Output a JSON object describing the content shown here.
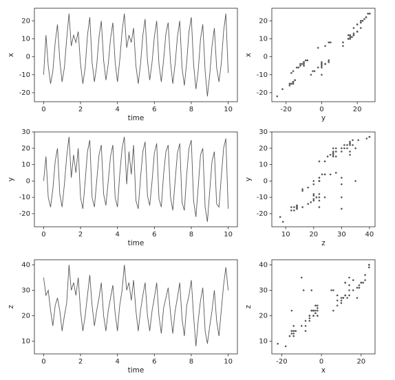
{
  "chart_data": [
    {
      "type": "line",
      "xlabel": "time",
      "ylabel": "x",
      "color": "#555555",
      "x": [
        0,
        0.125,
        0.25,
        0.375,
        0.5,
        0.625,
        0.75,
        0.875,
        1,
        1.125,
        1.25,
        1.375,
        1.5,
        1.625,
        1.75,
        1.875,
        2,
        2.125,
        2.25,
        2.375,
        2.5,
        2.625,
        2.75,
        2.875,
        3,
        3.125,
        3.25,
        3.375,
        3.5,
        3.625,
        3.75,
        3.875,
        4,
        4.125,
        4.25,
        4.375,
        4.5,
        4.625,
        4.75,
        4.875,
        5,
        5.125,
        5.25,
        5.375,
        5.5,
        5.625,
        5.75,
        5.875,
        6,
        6.125,
        6.25,
        6.375,
        6.5,
        6.625,
        6.75,
        6.875,
        7,
        7.125,
        7.25,
        7.375,
        7.5,
        7.625,
        7.75,
        7.875,
        8,
        8.125,
        8.25,
        8.375,
        8.5,
        8.625,
        8.75,
        8.875,
        9,
        9.125,
        9.25,
        9.375,
        9.5,
        9.625,
        9.75,
        9.875,
        10
      ],
      "values": [
        -10,
        12,
        -5,
        -15,
        -8,
        8,
        18,
        -2,
        -14,
        -6,
        10,
        24,
        6,
        12,
        8,
        14,
        -4,
        -15,
        -6,
        12,
        22,
        -3,
        -14,
        -5,
        11,
        20,
        -2,
        -13,
        -4,
        10,
        19,
        -3,
        -14,
        -2,
        14,
        24,
        5,
        12,
        8,
        16,
        -5,
        -15,
        -4,
        12,
        21,
        -2,
        -13,
        -3,
        11,
        20,
        -4,
        -14,
        -2,
        13,
        19,
        -3,
        -15,
        -4,
        11,
        20,
        -6,
        -16,
        -3,
        14,
        22,
        -4,
        -18,
        -8,
        10,
        18,
        -8,
        -22,
        -10,
        6,
        16,
        -6,
        -14,
        -4,
        14,
        24,
        -9
      ],
      "xlim": [
        -0.5,
        10.5
      ],
      "xticks": [
        0,
        2,
        4,
        6,
        8,
        10
      ],
      "ylim": [
        -25,
        27
      ],
      "yticks": [
        -20,
        -10,
        0,
        10,
        20
      ]
    },
    {
      "type": "scatter",
      "xlabel": "y",
      "ylabel": "x",
      "color": "#555555",
      "x": [
        0,
        15,
        -10,
        -16,
        -5,
        12,
        20,
        -8,
        -16,
        -2,
        15,
        27,
        2,
        16,
        5,
        20,
        -10,
        -17,
        0,
        18,
        25,
        -10,
        -16,
        0,
        16,
        22,
        -8,
        -15,
        0,
        15,
        22,
        -10,
        -16,
        4,
        20,
        27,
        -2,
        18,
        4,
        22,
        -12,
        -17,
        2,
        18,
        24,
        -9,
        -15,
        0,
        17,
        23,
        -11,
        -16,
        4,
        18,
        22,
        -10,
        -18,
        0,
        17,
        23,
        -13,
        -18,
        4,
        20,
        25,
        -12,
        -22,
        -4,
        16,
        20,
        -16,
        -25,
        -6,
        12,
        18,
        -14,
        -16,
        2,
        20,
        26,
        -17
      ],
      "y": [
        -10,
        12,
        -5,
        -15,
        -8,
        8,
        18,
        -2,
        -14,
        -6,
        10,
        24,
        6,
        12,
        8,
        14,
        -4,
        -15,
        -6,
        12,
        22,
        -3,
        -14,
        -5,
        11,
        20,
        -2,
        -13,
        -4,
        10,
        19,
        -3,
        -14,
        -2,
        14,
        24,
        5,
        12,
        8,
        16,
        -5,
        -15,
        -4,
        12,
        21,
        -2,
        -13,
        -3,
        11,
        20,
        -4,
        -14,
        -2,
        13,
        19,
        -3,
        -15,
        -4,
        11,
        20,
        -6,
        -16,
        -3,
        14,
        22,
        -4,
        -18,
        -8,
        10,
        18,
        -8,
        -22,
        -10,
        6,
        16,
        -6,
        -14,
        -4,
        14,
        24,
        -9
      ],
      "xlim": [
        -28,
        30
      ],
      "xticks": [
        -20,
        0,
        20
      ],
      "ylim": [
        -25,
        27
      ],
      "yticks": [
        -20,
        -10,
        0,
        10,
        20
      ]
    },
    {
      "type": "line",
      "xlabel": "time",
      "ylabel": "y",
      "color": "#555555",
      "x": [
        0,
        0.125,
        0.25,
        0.375,
        0.5,
        0.625,
        0.75,
        0.875,
        1,
        1.125,
        1.25,
        1.375,
        1.5,
        1.625,
        1.75,
        1.875,
        2,
        2.125,
        2.25,
        2.375,
        2.5,
        2.625,
        2.75,
        2.875,
        3,
        3.125,
        3.25,
        3.375,
        3.5,
        3.625,
        3.75,
        3.875,
        4,
        4.125,
        4.25,
        4.375,
        4.5,
        4.625,
        4.75,
        4.875,
        5,
        5.125,
        5.25,
        5.375,
        5.5,
        5.625,
        5.75,
        5.875,
        6,
        6.125,
        6.25,
        6.375,
        6.5,
        6.625,
        6.75,
        6.875,
        7,
        7.125,
        7.25,
        7.375,
        7.5,
        7.625,
        7.75,
        7.875,
        8,
        8.125,
        8.25,
        8.375,
        8.5,
        8.625,
        8.75,
        8.875,
        9,
        9.125,
        9.25,
        9.375,
        9.5,
        9.625,
        9.75,
        9.875,
        10
      ],
      "values": [
        0,
        15,
        -10,
        -16,
        -5,
        12,
        20,
        -8,
        -16,
        -2,
        15,
        27,
        2,
        16,
        5,
        20,
        -10,
        -17,
        0,
        18,
        25,
        -10,
        -16,
        0,
        16,
        22,
        -8,
        -15,
        0,
        15,
        22,
        -10,
        -16,
        4,
        20,
        27,
        -2,
        18,
        4,
        22,
        -12,
        -17,
        2,
        18,
        24,
        -9,
        -15,
        0,
        17,
        23,
        -11,
        -16,
        4,
        18,
        22,
        -10,
        -18,
        0,
        17,
        23,
        -13,
        -18,
        4,
        20,
        25,
        -12,
        -22,
        -4,
        16,
        20,
        -16,
        -25,
        -6,
        12,
        18,
        -14,
        -16,
        2,
        20,
        26,
        -17
      ],
      "xlim": [
        -0.5,
        10.5
      ],
      "xticks": [
        0,
        2,
        4,
        6,
        8,
        10
      ],
      "ylim": [
        -28,
        30
      ],
      "yticks": [
        -20,
        -10,
        0,
        10,
        20,
        30
      ]
    },
    {
      "type": "scatter",
      "xlabel": "z",
      "ylabel": "y",
      "color": "#555555",
      "x": [
        35,
        28,
        30,
        22,
        16,
        24,
        27,
        22,
        14,
        20,
        25,
        40,
        30,
        33,
        28,
        35,
        22,
        14,
        20,
        28,
        36,
        24,
        16,
        22,
        27,
        33,
        20,
        14,
        22,
        27,
        32,
        21,
        14,
        24,
        30,
        40,
        30,
        33,
        26,
        34,
        22,
        14,
        22,
        28,
        33,
        20,
        14,
        22,
        27,
        33,
        20,
        13,
        23,
        27,
        31,
        21,
        13,
        22,
        27,
        33,
        19,
        12,
        24,
        28,
        34,
        20,
        8,
        18,
        26,
        31,
        14,
        9,
        16,
        22,
        30,
        18,
        12,
        22,
        32,
        39,
        30
      ],
      "y": [
        0,
        15,
        -10,
        -16,
        -5,
        12,
        20,
        -8,
        -16,
        -2,
        15,
        27,
        2,
        16,
        5,
        20,
        -10,
        -17,
        0,
        18,
        25,
        -10,
        -16,
        0,
        16,
        22,
        -8,
        -15,
        0,
        15,
        22,
        -10,
        -16,
        4,
        20,
        27,
        -2,
        18,
        4,
        22,
        -12,
        -17,
        2,
        18,
        24,
        -9,
        -15,
        0,
        17,
        23,
        -11,
        -16,
        4,
        18,
        22,
        -10,
        -18,
        0,
        17,
        23,
        -13,
        -18,
        4,
        20,
        25,
        -12,
        -22,
        -4,
        16,
        20,
        -16,
        -25,
        -6,
        12,
        18,
        -14,
        -16,
        2,
        20,
        26,
        -17
      ],
      "xlim": [
        5,
        42
      ],
      "xticks": [
        10,
        20,
        30,
        40
      ],
      "ylim": [
        -28,
        30
      ],
      "yticks": [
        -20,
        -10,
        0,
        10,
        20,
        30
      ]
    },
    {
      "type": "line",
      "xlabel": "time",
      "ylabel": "z",
      "color": "#555555",
      "x": [
        0,
        0.125,
        0.25,
        0.375,
        0.5,
        0.625,
        0.75,
        0.875,
        1,
        1.125,
        1.25,
        1.375,
        1.5,
        1.625,
        1.75,
        1.875,
        2,
        2.125,
        2.25,
        2.375,
        2.5,
        2.625,
        2.75,
        2.875,
        3,
        3.125,
        3.25,
        3.375,
        3.5,
        3.625,
        3.75,
        3.875,
        4,
        4.125,
        4.25,
        4.375,
        4.5,
        4.625,
        4.75,
        4.875,
        5,
        5.125,
        5.25,
        5.375,
        5.5,
        5.625,
        5.75,
        5.875,
        6,
        6.125,
        6.25,
        6.375,
        6.5,
        6.625,
        6.75,
        6.875,
        7,
        7.125,
        7.25,
        7.375,
        7.5,
        7.625,
        7.75,
        7.875,
        8,
        8.125,
        8.25,
        8.375,
        8.5,
        8.625,
        8.75,
        8.875,
        9,
        9.125,
        9.25,
        9.375,
        9.5,
        9.625,
        9.75,
        9.875,
        10
      ],
      "values": [
        35,
        28,
        30,
        22,
        16,
        24,
        27,
        22,
        14,
        20,
        25,
        40,
        30,
        33,
        28,
        35,
        22,
        14,
        20,
        28,
        36,
        24,
        16,
        22,
        27,
        33,
        20,
        14,
        22,
        27,
        32,
        21,
        14,
        24,
        30,
        40,
        30,
        33,
        26,
        34,
        22,
        14,
        22,
        28,
        33,
        20,
        14,
        22,
        27,
        33,
        20,
        13,
        23,
        27,
        31,
        21,
        13,
        22,
        27,
        33,
        19,
        12,
        24,
        28,
        34,
        20,
        8,
        18,
        26,
        31,
        14,
        9,
        16,
        22,
        30,
        18,
        12,
        22,
        32,
        39,
        30
      ],
      "xlim": [
        -0.5,
        10.5
      ],
      "xticks": [
        0,
        2,
        4,
        6,
        8,
        10
      ],
      "ylim": [
        5,
        42
      ],
      "yticks": [
        10,
        20,
        30,
        40
      ]
    },
    {
      "type": "scatter",
      "xlabel": "x",
      "ylabel": "z",
      "color": "#555555",
      "x": [
        -10,
        12,
        -5,
        -15,
        -8,
        8,
        18,
        -2,
        -14,
        -6,
        10,
        24,
        6,
        12,
        8,
        14,
        -4,
        -15,
        -6,
        12,
        22,
        -3,
        -14,
        -5,
        11,
        20,
        -2,
        -13,
        -4,
        10,
        19,
        -3,
        -14,
        -2,
        14,
        24,
        5,
        12,
        8,
        16,
        -5,
        -15,
        -4,
        12,
        21,
        -2,
        -13,
        -3,
        11,
        20,
        -4,
        -14,
        -2,
        13,
        19,
        -3,
        -15,
        -4,
        11,
        20,
        -6,
        -16,
        -3,
        14,
        22,
        -4,
        -18,
        -8,
        10,
        18,
        -8,
        -22,
        -10,
        6,
        16,
        -6,
        -14,
        -4,
        14,
        24,
        -9
      ],
      "y": [
        35,
        28,
        30,
        22,
        16,
        24,
        27,
        22,
        14,
        20,
        25,
        40,
        30,
        33,
        28,
        35,
        22,
        14,
        20,
        28,
        36,
        24,
        16,
        22,
        27,
        33,
        20,
        14,
        22,
        27,
        32,
        21,
        14,
        24,
        30,
        40,
        30,
        33,
        26,
        34,
        22,
        14,
        22,
        28,
        33,
        20,
        14,
        22,
        27,
        33,
        20,
        13,
        23,
        27,
        31,
        21,
        13,
        22,
        27,
        33,
        19,
        12,
        24,
        28,
        34,
        20,
        8,
        18,
        26,
        31,
        14,
        9,
        16,
        22,
        30,
        18,
        12,
        22,
        32,
        39,
        30
      ],
      "xlim": [
        -25,
        27
      ],
      "xticks": [
        -20,
        0,
        20
      ],
      "ylim": [
        5,
        42
      ],
      "yticks": [
        10,
        20,
        30,
        40
      ]
    }
  ]
}
